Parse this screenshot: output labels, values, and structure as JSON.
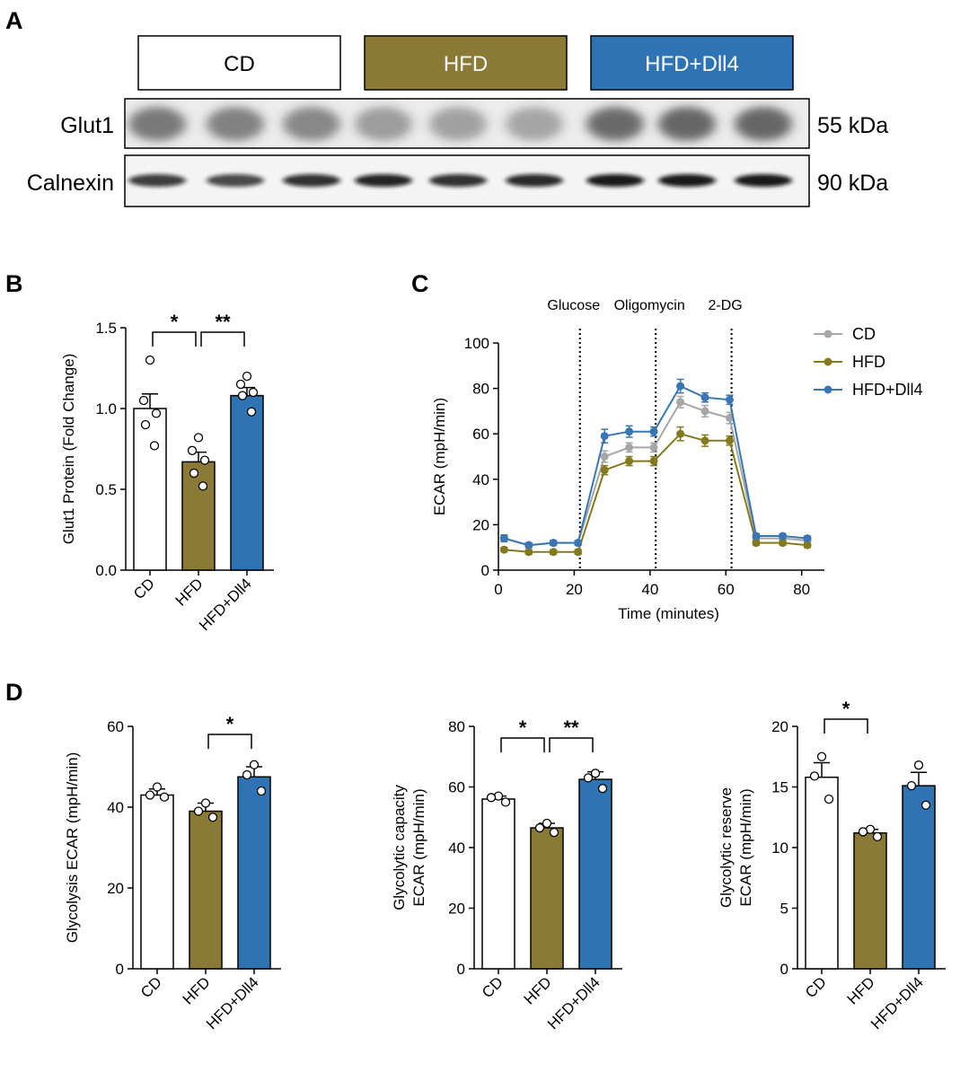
{
  "panels": {
    "A": "A",
    "B": "B",
    "C": "C",
    "D": "D"
  },
  "colors": {
    "CD": "#ffffff",
    "HFD": "#8b7a35",
    "HFD+Dll4": "#2e74b5",
    "CD_line": "#a6a6a6",
    "HFD_line": "#837a1e",
    "HFD+Dll4_line": "#3a76b3"
  },
  "blot": {
    "group_headers": [
      "CD",
      "HFD",
      "HFD+Dll4"
    ],
    "rows": [
      {
        "label": "Glut1",
        "size": "55 kDa"
      },
      {
        "label": "Calnexin",
        "size": "90 kDa"
      }
    ]
  },
  "chart_data": [
    {
      "panel": "B",
      "type": "bar",
      "categories": [
        "CD",
        "HFD",
        "HFD+Dll4"
      ],
      "values": [
        1.0,
        0.67,
        1.08
      ],
      "sem": [
        0.09,
        0.06,
        0.05
      ],
      "points": [
        [
          1.3,
          1.05,
          0.97,
          0.9,
          0.77
        ],
        [
          0.82,
          0.74,
          0.68,
          0.6,
          0.52
        ],
        [
          1.2,
          1.15,
          1.1,
          1.08,
          0.98
        ]
      ],
      "ylabel": "Glut1 Protein (Fold Change)",
      "ylim": [
        0,
        1.5
      ],
      "yticks": [
        "0.0",
        "0.5",
        "1.0",
        "1.5"
      ],
      "significance": [
        {
          "from": "CD",
          "to": "HFD",
          "label": "*"
        },
        {
          "from": "HFD",
          "to": "HFD+Dll4",
          "label": "**"
        }
      ]
    },
    {
      "panel": "C",
      "type": "line",
      "x": [
        1.5,
        8,
        14.5,
        21,
        28,
        34.5,
        41,
        48,
        54.5,
        61,
        68,
        75,
        81.5
      ],
      "series": [
        {
          "name": "CD",
          "values": [
            14,
            11,
            12,
            12,
            50,
            54,
            54,
            74,
            70,
            67,
            14,
            14,
            13
          ],
          "err": [
            1,
            1,
            1,
            1,
            2.5,
            2,
            2,
            2.5,
            2.5,
            2.5,
            1,
            1,
            1
          ]
        },
        {
          "name": "HFD",
          "values": [
            9,
            8,
            8,
            8,
            44,
            48,
            48,
            60,
            57,
            57,
            12,
            12,
            11
          ],
          "err": [
            1,
            1,
            1,
            1,
            2,
            2,
            2,
            3,
            2.5,
            2,
            1,
            1,
            1
          ]
        },
        {
          "name": "HFD+Dll4",
          "values": [
            14,
            11,
            12,
            12,
            59,
            61,
            61,
            81,
            76,
            75,
            15,
            15,
            14
          ],
          "err": [
            1.5,
            1,
            1,
            1,
            3,
            2.5,
            2,
            3,
            2,
            2,
            1,
            1,
            1
          ]
        }
      ],
      "xlabel": "Time (minutes)",
      "ylabel": "ECAR (mpH/min)",
      "xlim": [
        0,
        86
      ],
      "ylim": [
        0,
        100
      ],
      "xticks": [
        "0",
        "20",
        "40",
        "60",
        "80"
      ],
      "yticks": [
        "0",
        "20",
        "40",
        "60",
        "80",
        "100"
      ],
      "injections": [
        {
          "label": "Glucose",
          "x": 21.5
        },
        {
          "label": "Oligomycin",
          "x": 41.5
        },
        {
          "label": "2-DG",
          "x": 61.5
        }
      ],
      "legend": "top-right"
    },
    {
      "panel": "D1",
      "type": "bar",
      "categories": [
        "CD",
        "HFD",
        "HFD+Dll4"
      ],
      "values": [
        43,
        39,
        47.5
      ],
      "sem": [
        1.5,
        2,
        2.5
      ],
      "points": [
        [
          45,
          43,
          42.5
        ],
        [
          41,
          39,
          37.5
        ],
        [
          50.5,
          48,
          44
        ]
      ],
      "ylabel": "Glycolysis ECAR (mpH/min)",
      "ylim": [
        0,
        60
      ],
      "yticks": [
        "0",
        "20",
        "40",
        "60"
      ],
      "significance": [
        {
          "from": "HFD",
          "to": "HFD+Dll4",
          "label": "*"
        }
      ]
    },
    {
      "panel": "D2",
      "type": "bar",
      "categories": [
        "CD",
        "HFD",
        "HFD+Dll4"
      ],
      "values": [
        56,
        46.5,
        62.5
      ],
      "sem": [
        1,
        1.5,
        2.5
      ],
      "points": [
        [
          57,
          56.5,
          55
        ],
        [
          48,
          46.5,
          45
        ],
        [
          64.5,
          63,
          59.5
        ]
      ],
      "ylabel": "Glycolytic capacity ECAR (mpH/min)",
      "ylabel_lines": [
        "Glycolytic capacity",
        "ECAR (mpH/min)"
      ],
      "ylim": [
        0,
        80
      ],
      "yticks": [
        "0",
        "20",
        "40",
        "60",
        "80"
      ],
      "significance": [
        {
          "from": "CD",
          "to": "HFD",
          "label": "*"
        },
        {
          "from": "HFD",
          "to": "HFD+Dll4",
          "label": "**"
        }
      ]
    },
    {
      "panel": "D3",
      "type": "bar",
      "categories": [
        "CD",
        "HFD",
        "HFD+Dll4"
      ],
      "values": [
        15.8,
        11.2,
        15.1
      ],
      "sem": [
        1.2,
        0.3,
        1.1
      ],
      "points": [
        [
          17.5,
          15.9,
          14
        ],
        [
          11.5,
          11.3,
          10.9
        ],
        [
          16.8,
          15.1,
          13.5
        ]
      ],
      "ylabel": "Glycolytic reserve ECAR (mpH/min)",
      "ylabel_lines": [
        "Glycolytic reserve",
        "ECAR (mpH/min)"
      ],
      "ylim": [
        0,
        20
      ],
      "yticks": [
        "0",
        "5",
        "10",
        "15",
        "20"
      ],
      "significance": [
        {
          "from": "CD",
          "to": "HFD",
          "label": "*"
        }
      ]
    }
  ]
}
